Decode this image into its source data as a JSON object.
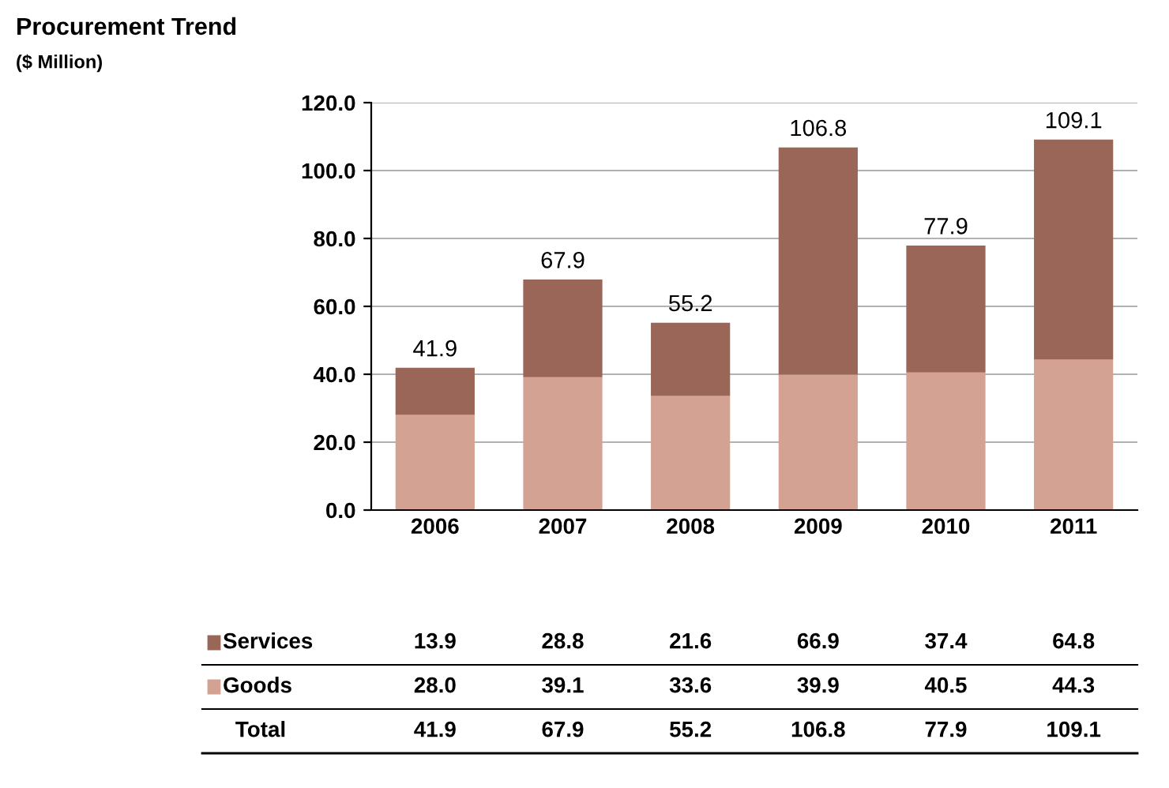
{
  "chart_data": {
    "type": "bar",
    "title": "Procurement Trend",
    "subtitle": "($ Million)",
    "categories": [
      "2006",
      "2007",
      "2008",
      "2009",
      "2010",
      "2011"
    ],
    "stacked": true,
    "series": [
      {
        "name": "Goods",
        "color": "#d4a293",
        "values": [
          28.0,
          39.1,
          33.6,
          39.9,
          40.5,
          44.3
        ],
        "value_labels": [
          "28.0",
          "39.1",
          "33.6",
          "39.9",
          "40.5",
          "44.3"
        ]
      },
      {
        "name": "Services",
        "color": "#9a6658",
        "values": [
          13.9,
          28.8,
          21.6,
          66.9,
          37.4,
          64.8
        ],
        "value_labels": [
          "13.9",
          "28.8",
          "21.6",
          "66.9",
          "37.4",
          "64.8"
        ]
      }
    ],
    "ylim": [
      0,
      120
    ],
    "yticks": [
      {
        "value": 0,
        "label": "0.0"
      },
      {
        "value": 20,
        "label": "20.0"
      },
      {
        "value": 40,
        "label": "40.0"
      },
      {
        "value": 60,
        "label": "60.0"
      },
      {
        "value": 80,
        "label": "80.0"
      },
      {
        "value": 100,
        "label": "100.0"
      },
      {
        "value": 120,
        "label": "120.0"
      }
    ],
    "grid": "y",
    "legend": "bottom",
    "totals": [
      "41.9",
      "67.9",
      "55.2",
      "106.8",
      "77.9",
      "109.1"
    ],
    "annotations": [
      "Total"
    ]
  }
}
